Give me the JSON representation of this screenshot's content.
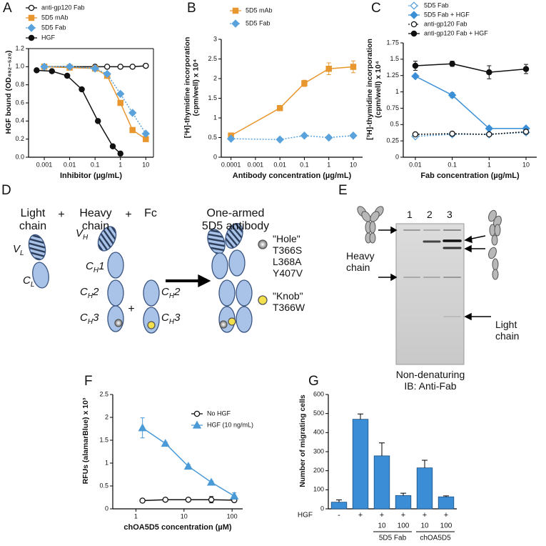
{
  "chart_data": [
    {
      "type": "line",
      "panel": "A",
      "xlabel": "Inhibitor (µg/mL)",
      "ylabel": "HGF bound (OD₄₉₂₋₅₂₀)",
      "xscale": "log",
      "xlim": [
        0.00024,
        20
      ],
      "xticks": [
        0.001,
        0.01,
        0.1,
        1,
        10
      ],
      "ylim": [
        0,
        1.2
      ],
      "yticks": [
        {
          "value": 0,
          "label": "0.0"
        },
        0.2,
        0.4,
        0.6,
        0.8,
        {
          "value": 1,
          "label": "1.0"
        },
        1.2
      ],
      "frame": true,
      "series": [
        {
          "name": "anti-gp120 Fab",
          "color": "#111111",
          "marker": "circle-open",
          "line_style": "solid",
          "x": [
            0.001,
            0.01,
            0.1,
            0.3,
            1,
            3,
            10
          ],
          "values": [
            1.0,
            1.0,
            1.0,
            1.0,
            1.0,
            1.0,
            1.01
          ]
        },
        {
          "name": "5D5 mAb",
          "color": "#e8962e",
          "marker": "square",
          "line_style": "solid",
          "x": [
            0.001,
            0.01,
            0.1,
            0.3,
            1,
            3,
            10
          ],
          "values": [
            1.0,
            0.99,
            0.98,
            0.9,
            0.6,
            0.3,
            0.2
          ]
        },
        {
          "name": "5D5 Fab",
          "color": "#5aa2dc",
          "marker": "diamond",
          "line_style": "dotted",
          "x": [
            0.001,
            0.01,
            0.1,
            0.3,
            1,
            3,
            10
          ],
          "values": [
            1.0,
            1.0,
            0.98,
            0.92,
            0.7,
            0.49,
            0.26
          ]
        },
        {
          "name": "HGF",
          "color": "#111111",
          "marker": "circle",
          "line_style": "solid",
          "x": [
            0.0005,
            0.002,
            0.008,
            0.03,
            0.13,
            0.5,
            1
          ],
          "values": [
            0.96,
            0.95,
            0.9,
            0.75,
            0.4,
            0.12,
            0.04
          ]
        }
      ]
    },
    {
      "type": "line",
      "panel": "B",
      "xlabel": "Antibody concentration (µg/mL)",
      "ylabel": "[³H]-thymidine incorporation (cpm/well) x 10⁴",
      "xscale": "log",
      "xlim": [
        4e-05,
        24
      ],
      "xticks": [
        0.0001,
        0.001,
        0.01,
        0.1,
        1,
        10
      ],
      "ylim": [
        0,
        3
      ],
      "yticks": [
        0,
        0.5,
        1,
        1.5,
        2,
        2.5,
        3
      ],
      "series": [
        {
          "name": "5D5 mAb",
          "color": "#e8962e",
          "marker": "square",
          "line_style": "solid",
          "x": [
            0.0001,
            0.01,
            0.1,
            1,
            10
          ],
          "values": [
            0.55,
            1.25,
            1.88,
            2.25,
            2.3
          ],
          "errors": [
            0.05,
            0.05,
            0.08,
            0.15,
            0.15
          ]
        },
        {
          "name": "5D5 Fab",
          "color": "#5aa2dc",
          "marker": "diamond",
          "line_style": "dotted",
          "x": [
            0.0001,
            0.01,
            0.1,
            1,
            10
          ],
          "values": [
            0.47,
            0.45,
            0.55,
            0.5,
            0.55
          ]
        }
      ]
    },
    {
      "type": "line",
      "panel": "C",
      "xlabel": "Fab concentration (µg/mL)",
      "ylabel": "[³H]-thymidine incorporation (cpm/well) x 10⁴",
      "xscale": "log",
      "xlim": [
        0.0047,
        19.5
      ],
      "xticks": [
        0.01,
        0.1,
        1,
        10
      ],
      "ylim": [
        0,
        1.75
      ],
      "yticks": [
        0,
        0.25,
        0.5,
        0.75,
        1,
        1.25,
        1.5,
        1.75
      ],
      "series": [
        {
          "name": "5D5 Fab",
          "color": "#5aa2dc",
          "marker": "diamond-open",
          "line_style": "dotted",
          "x": [
            0.01,
            0.1,
            1,
            10
          ],
          "values": [
            0.32,
            0.35,
            0.35,
            0.38
          ]
        },
        {
          "name": "5D5 Fab + HGF",
          "color": "#3a8fd6",
          "marker": "diamond",
          "line_style": "solid",
          "x": [
            0.01,
            0.1,
            1,
            10
          ],
          "values": [
            1.24,
            0.95,
            0.44,
            0.44
          ],
          "errors": [
            0.02,
            0.04,
            0.02,
            0.02
          ]
        },
        {
          "name": "anti-gp120 Fab",
          "color": "#111111",
          "marker": "circle-open",
          "line_style": "dotted",
          "x": [
            0.01,
            0.1,
            1,
            10
          ],
          "values": [
            0.35,
            0.36,
            0.35,
            0.39
          ]
        },
        {
          "name": "anti-gp120 Fab + HGF",
          "color": "#111111",
          "marker": "circle",
          "line_style": "solid",
          "x": [
            0.01,
            0.1,
            1,
            10
          ],
          "values": [
            1.4,
            1.43,
            1.3,
            1.35
          ],
          "errors": [
            0.07,
            0.04,
            0.1,
            0.07
          ]
        }
      ]
    },
    {
      "type": "line",
      "panel": "F",
      "xlabel": "chOA5D5 concentration (µM)",
      "ylabel": "RFUs (alamarBlue) x 10³",
      "xscale": "log",
      "xlim": [
        0.33,
        166
      ],
      "xticks": [
        1,
        10,
        100
      ],
      "ylim": [
        0,
        2.5
      ],
      "yticks": [
        0,
        0.5,
        1,
        1.5,
        2,
        2.5
      ],
      "series": [
        {
          "name": "No HGF",
          "color": "#111111",
          "marker": "circle-open",
          "line_style": "solid",
          "x": [
            1.37,
            4.1,
            12.3,
            37,
            111
          ],
          "values": [
            0.18,
            0.2,
            0.2,
            0.2,
            0.19
          ],
          "errors": [
            null,
            null,
            null,
            0.07,
            null
          ]
        },
        {
          "name": "HGF (10 ng/mL)",
          "color": "#4a9ad8",
          "marker": "triangle",
          "line_style": "solid",
          "x": [
            1.37,
            4.1,
            12.3,
            37,
            111
          ],
          "values": [
            1.77,
            1.43,
            0.93,
            0.58,
            0.28
          ],
          "errors": [
            0.22,
            0.03,
            0.04,
            0.03,
            0.07
          ]
        }
      ]
    },
    {
      "type": "bar",
      "panel": "G",
      "ylabel": "Number of migrating cells",
      "row_label": "HGF",
      "categories": [
        "-",
        "+",
        "+",
        "+",
        "+",
        "+"
      ],
      "concentrations": [
        null,
        null,
        10,
        100,
        10,
        100
      ],
      "groups": [
        null,
        null,
        "5D5 Fab",
        "5D5 Fab",
        "chOA5D5",
        "chOA5D5"
      ],
      "values": [
        35,
        470,
        278,
        70,
        215,
        63
      ],
      "errors": [
        12,
        28,
        68,
        12,
        40,
        5
      ],
      "color": "#3b8ed6",
      "ylim": [
        0,
        600
      ],
      "yticks": [
        0,
        100,
        200,
        300,
        400,
        500,
        600
      ]
    }
  ],
  "diagram": {
    "panel": "D",
    "light_chain": "Light chain",
    "heavy_chain": "Heavy chain",
    "fc": "Fc",
    "plus": "+",
    "product": "One-armed 5D5 antibody",
    "domains": {
      "vl": {
        "text": "V",
        "sub": "L"
      },
      "cl": {
        "text": "C",
        "sub": "L"
      },
      "vh": {
        "text": "V",
        "sub": "H"
      },
      "ch1": {
        "text": "C",
        "sub": "H",
        "after": "1"
      },
      "ch2": {
        "text": "C",
        "sub": "H",
        "after": "2"
      },
      "ch3": {
        "text": "C",
        "sub": "H",
        "after": "3"
      }
    },
    "hole": {
      "label": "\"Hole\"",
      "mutations": [
        "T366S",
        "L368A",
        "Y407V"
      ]
    },
    "knob": {
      "label": "\"Knob\"",
      "mutations": [
        "T366W"
      ]
    }
  },
  "gel": {
    "panel": "E",
    "lanes": [
      "1",
      "2",
      "3"
    ],
    "heavy_chain": "Heavy chain",
    "light_chain": "Light chain",
    "caption": [
      "Non-denaturing",
      "IB: Anti-Fab"
    ]
  }
}
